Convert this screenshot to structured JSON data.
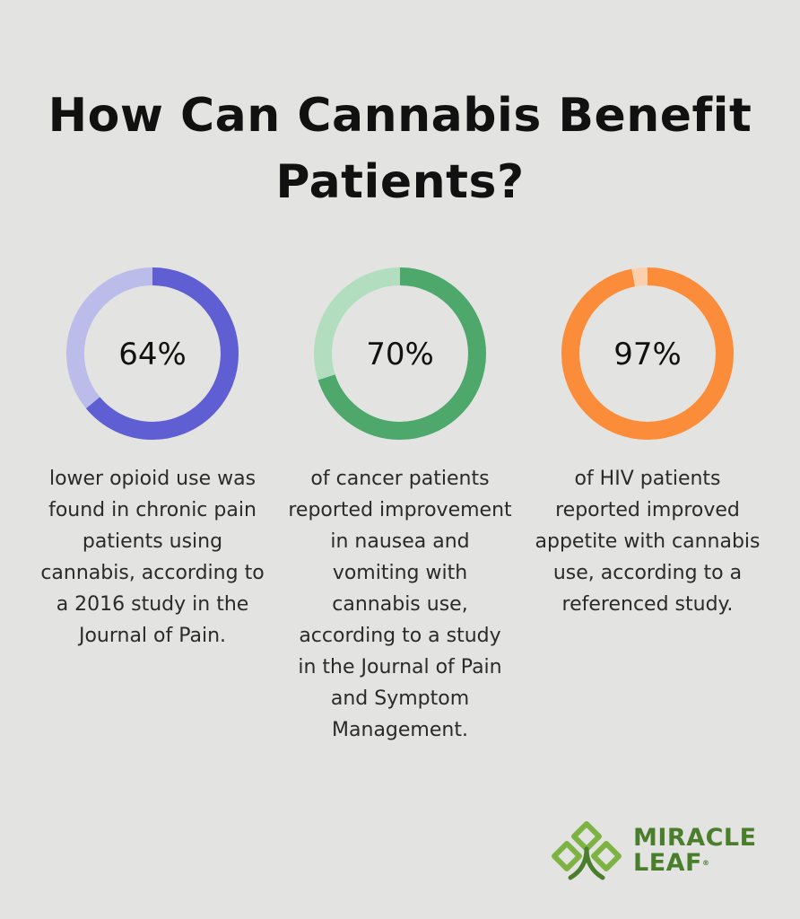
{
  "title": "How Can Cannabis Benefit Patients?",
  "chart_data": {
    "type": "donut",
    "items": [
      {
        "label": "64%",
        "value": 64,
        "caption": "lower opioid use was found in chronic pain patients using cannabis, according to a 2016 study in the Journal of Pain.",
        "color": "#5f5fd3",
        "track_color": "#bcbcea"
      },
      {
        "label": "70%",
        "value": 70,
        "caption": "of cancer patients reported improvement in nausea and vomiting with cannabis use, according to a study in the Journal of Pain and Symptom Management.",
        "color": "#4ea86b",
        "track_color": "#b3ddbf"
      },
      {
        "label": "97%",
        "value": 97,
        "caption": "of HIV patients reported improved appetite with cannabis use, according to a referenced study.",
        "color": "#fb8c3a",
        "track_color": "#fdd0ad"
      }
    ]
  },
  "logo": {
    "line1": "MIRACLE",
    "line2": "LEAF",
    "mark": "®",
    "icon": "miracle-leaf-logo-icon",
    "color": "#4a7d2c",
    "accent": "#7cb342"
  }
}
